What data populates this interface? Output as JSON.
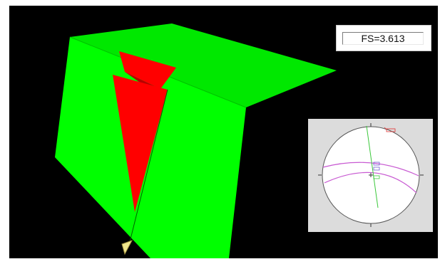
{
  "factor_of_safety": {
    "label": "FS=3.613"
  },
  "colors": {
    "background": "#000000",
    "slope_face": "#00ff00",
    "slope_shadow": "#00dd00",
    "wedge": "#ff0000",
    "wedge_shadow": "#b80000",
    "stereonet_bg": "#dcdcdc",
    "plane_a": "#c85ad2",
    "plane_b": "#c85ad2",
    "vector_green": "#3cc83c",
    "pole_red": "#e03030",
    "marker": "#f0e68c"
  },
  "icons": {
    "view_marker": "cone-marker-icon"
  }
}
